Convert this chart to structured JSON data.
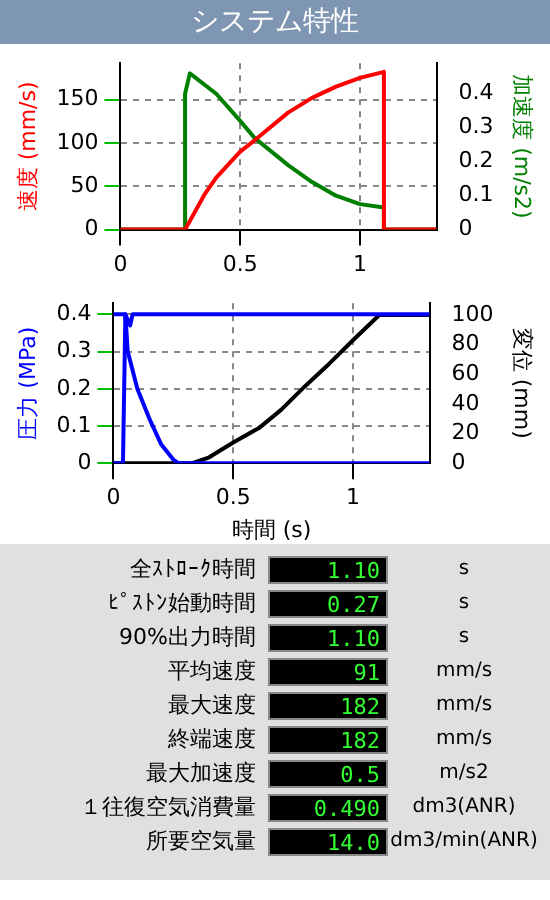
{
  "chart_data": [
    {
      "type": "line",
      "title": "システム特性",
      "ylabel": "速度 (mm/s)",
      "y2label": "加速度 (m/s2)",
      "xlim": [
        0,
        1.32
      ],
      "xticks": [
        0,
        0.5,
        1
      ],
      "ylim": [
        0,
        192
      ],
      "yticks": [
        0,
        50,
        100,
        150
      ],
      "y2lim": [
        0,
        0.49
      ],
      "y2ticks": [
        0,
        0.1,
        0.2,
        0.3,
        0.4
      ],
      "grid": true,
      "legend": false,
      "marker": "none",
      "line_style": "solid",
      "series": [
        {
          "color": "#ff0000",
          "x": [
            0,
            0.27,
            0.35,
            0.4,
            0.5,
            0.56,
            0.7,
            0.8,
            0.9,
            1.0,
            1.1,
            1.1,
            1.32
          ],
          "values": [
            0,
            0,
            40,
            60,
            90,
            103,
            135,
            152,
            165,
            175,
            182,
            0,
            0
          ]
        },
        {
          "color": "#008000",
          "axis": "y2",
          "x": [
            0,
            0.27,
            0.27,
            0.29,
            0.4,
            0.5,
            0.56,
            0.7,
            0.8,
            0.9,
            1.0,
            1.1,
            1.1,
            1.32
          ],
          "values": [
            0,
            0,
            0.4,
            0.46,
            0.4,
            0.32,
            0.27,
            0.19,
            0.14,
            0.1,
            0.075,
            0.065,
            0,
            0
          ]
        }
      ]
    },
    {
      "type": "line",
      "xlabel": "時間 (s)",
      "ylabel": "圧力 (MPa)",
      "y2label": "変位 (mm)",
      "xlim": [
        0,
        1.32
      ],
      "xticks": [
        0,
        0.5,
        1
      ],
      "ylim": [
        0,
        0.43
      ],
      "yticks": [
        0,
        0.1,
        0.2,
        0.3,
        0.4
      ],
      "y2lim": [
        0,
        108
      ],
      "y2ticks": [
        0,
        20,
        40,
        60,
        80,
        100
      ],
      "grid": true,
      "legend": false,
      "marker": "none",
      "line_style": "solid",
      "series": [
        {
          "color": "#0000ff",
          "x": [
            0,
            0.04,
            0.05,
            0.07,
            0.08,
            1.32
          ],
          "values": [
            0,
            0,
            0.4,
            0.37,
            0.4,
            0.4
          ]
        },
        {
          "color": "#0000ff",
          "x": [
            0,
            0.05,
            0.06,
            0.1,
            0.15,
            0.2,
            0.25,
            0.27,
            1.32
          ],
          "values": [
            0.4,
            0.4,
            0.3,
            0.2,
            0.12,
            0.05,
            0.01,
            0,
            0
          ]
        },
        {
          "color": "#000000",
          "axis": "y2",
          "x": [
            0,
            0.33,
            0.4,
            0.5,
            0.61,
            0.7,
            0.8,
            0.9,
            1.0,
            1.11,
            1.32
          ],
          "values": [
            0,
            0,
            4,
            14,
            24,
            36,
            52,
            67,
            83,
            100,
            100
          ]
        }
      ]
    },
    {
      "type": "other",
      "categories": [
        "全ｽﾄﾛｰｸ時間",
        "ﾋﾟｽﾄﾝ始動時間",
        "90%出力時間",
        "平均速度",
        "最大速度",
        "終端速度",
        "最大加速度",
        "１往復空気消費量",
        "所要空気量"
      ],
      "value_labels": [
        "1.10",
        "0.27",
        "1.10",
        "91",
        "182",
        "182",
        "0.5",
        "0.490",
        "14.0"
      ],
      "annotations": [
        "s",
        "s",
        "s",
        "mm/s",
        "mm/s",
        "mm/s",
        "m/s2",
        "dm3(ANR)",
        "dm3/min(ANR)"
      ]
    }
  ]
}
